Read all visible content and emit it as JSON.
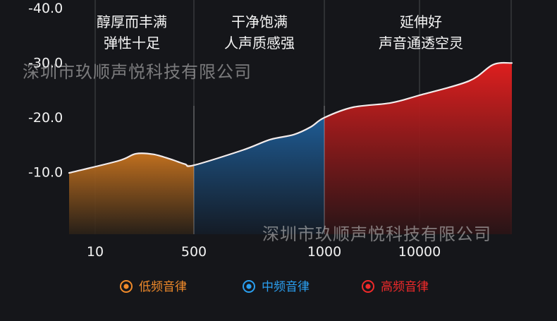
{
  "chart_data": {
    "type": "area",
    "title": "",
    "xlabel": "",
    "ylabel": "",
    "x_ticks": [
      "10",
      "500",
      "1000",
      "10000"
    ],
    "y_ticks": [
      "-40.0",
      "-30.0",
      "-20.0",
      "-10.0"
    ],
    "ylim": [
      0,
      -40
    ],
    "grid": true,
    "legend_position": "bottom",
    "band_labels": [
      {
        "id": "low",
        "lines": [
          "醇厚而丰满",
          "弹性十足"
        ]
      },
      {
        "id": "mid",
        "lines": [
          "干净饱满",
          "人声质感强"
        ]
      },
      {
        "id": "high",
        "lines": [
          "延伸好",
          "声音通透空灵"
        ]
      }
    ],
    "series": [
      {
        "id": "low",
        "name": "低频音律",
        "color": "#f08a2a",
        "x": [
          10,
          25,
          50,
          100,
          200,
          350,
          500
        ],
        "y": [
          -9.8,
          -12.0,
          -13.3,
          -13.2,
          -12.3,
          -11.4,
          -11.2
        ]
      },
      {
        "id": "mid",
        "name": "中频音律",
        "color": "#2a9ff0",
        "x": [
          500,
          650,
          750,
          850,
          930,
          1000
        ],
        "y": [
          -11.2,
          -14.0,
          -15.9,
          -16.8,
          -18.2,
          -19.9
        ]
      },
      {
        "id": "high",
        "name": "高频音律",
        "color": "#f02a2a",
        "x": [
          1000,
          2000,
          5000,
          10000,
          18000,
          24000,
          30000
        ],
        "y": [
          -19.9,
          -21.8,
          -22.6,
          -24.0,
          -26.6,
          -29.6,
          -29.9
        ]
      }
    ]
  },
  "watermark": {
    "top": "深圳市玖顺声悦科技有限公司",
    "bottom": "深圳市玖顺声悦科技有限公司"
  }
}
